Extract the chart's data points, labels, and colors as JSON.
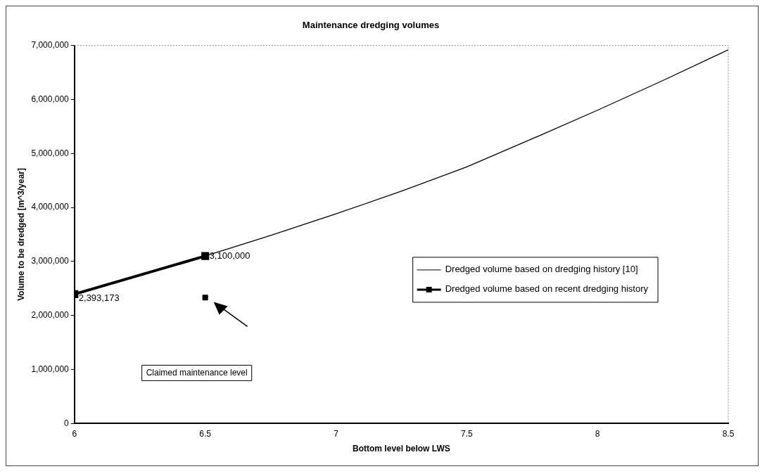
{
  "chart_data": {
    "type": "line",
    "title": "Maintenance dredging volumes",
    "xlabel": "Bottom level below LWS",
    "ylabel": "Volume to be dredged [m^3/year]",
    "xlim": [
      6,
      8.5
    ],
    "xticks": [
      6,
      6.5,
      7,
      7.5,
      8,
      8.5
    ],
    "ylim": [
      0,
      7000000
    ],
    "yticks": [
      {
        "value": 0,
        "label": "0"
      },
      {
        "value": 1000000,
        "label": "1,000,000"
      },
      {
        "value": 2000000,
        "label": "2,000,000"
      },
      {
        "value": 3000000,
        "label": "3,000,000"
      },
      {
        "value": 4000000,
        "label": "4,000,000"
      },
      {
        "value": 5000000,
        "label": "5,000,000"
      },
      {
        "value": 6000000,
        "label": "6,000,000"
      },
      {
        "value": 7000000,
        "label": "7,000,000"
      }
    ],
    "grid": false,
    "legend": "right",
    "series": [
      {
        "name": "Dredged volume based on dredging history [10]",
        "color": "#000000",
        "marker": "none",
        "x": [
          6,
          6.25,
          6.5,
          6.75,
          7,
          7.25,
          7.5,
          7.75,
          8,
          8.25,
          8.5
        ],
        "values": [
          2390000,
          2740000,
          3100000,
          3480000,
          3880000,
          4300000,
          4750000,
          5270000,
          5800000,
          6350000,
          6920000
        ]
      },
      {
        "name": "Dredged volume based on recent dredging history",
        "color": "#000000",
        "marker": "square",
        "x": [
          6,
          6.5
        ],
        "values": [
          2393173,
          3100000
        ],
        "value_labels": [
          "2,393,173",
          "3,100,000"
        ]
      },
      {
        "type": "scatter",
        "color": "#000000",
        "marker": "square",
        "x": [
          6.5
        ],
        "values": [
          2330000
        ]
      }
    ],
    "annotations": [
      "Claimed maintenance level"
    ]
  }
}
